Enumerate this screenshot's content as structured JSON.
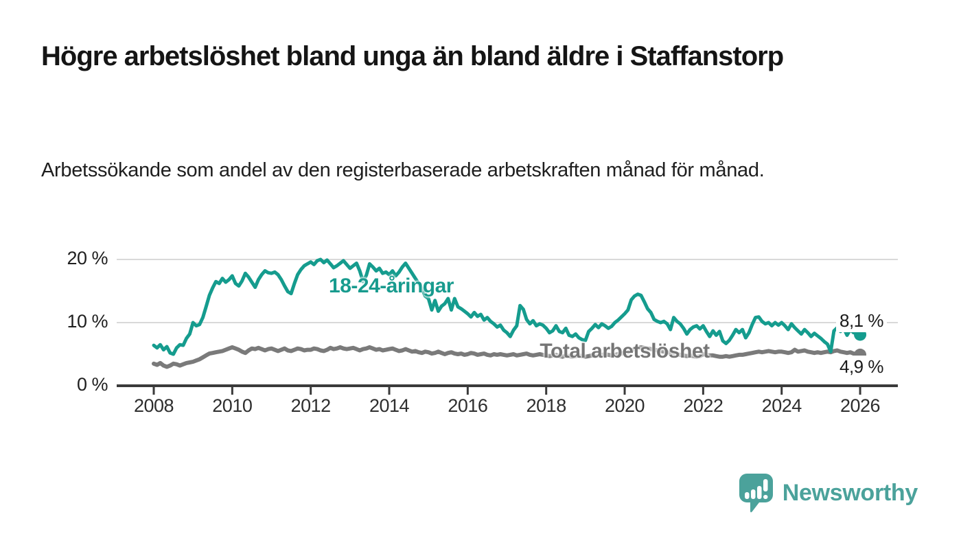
{
  "title": "Högre arbetslöshet bland unga än bland äldre i Staffanstorp",
  "subtitle": "Arbetssökande som andel av den registerbaserade arbetskraften månad för månad.",
  "branding": {
    "logo_text": "Newsworthy",
    "logo_icon": "bar-chart-speech-bubble",
    "logo_color": "#4ba29b"
  },
  "colors": {
    "youth_line": "#159c8e",
    "total_line": "#7a7a7a",
    "grid": "#d9d9d9",
    "axis": "#3a3a3a"
  },
  "chart_data": {
    "type": "line",
    "title": "Högre arbetslöshet bland unga än bland äldre i Staffanstorp",
    "xlabel": "",
    "ylabel": "",
    "x_start": "2008-01",
    "frequency": "monthly",
    "x_ticks": [
      2008,
      2010,
      2012,
      2014,
      2016,
      2018,
      2020,
      2022,
      2024,
      2026
    ],
    "y_ticks": [
      0,
      10,
      20
    ],
    "y_tick_labels": [
      "0 %",
      "10 %",
      "20 %"
    ],
    "ylim": [
      0,
      21
    ],
    "grid": "horizontal-only",
    "legend_position": "inline-labels",
    "series": [
      {
        "name": "18-24-åringar",
        "color": "#159c8e",
        "end_label": "8,1 %",
        "end_value": 8.1,
        "values": [
          6.4,
          6.0,
          6.5,
          5.7,
          6.2,
          5.2,
          5.0,
          6.0,
          6.5,
          6.4,
          7.5,
          8.2,
          10.0,
          9.5,
          9.7,
          10.8,
          12.5,
          14.3,
          15.5,
          16.5,
          16.2,
          17.0,
          16.4,
          16.8,
          17.4,
          16.2,
          15.8,
          16.6,
          17.8,
          17.2,
          16.4,
          15.6,
          16.8,
          17.6,
          18.2,
          17.9,
          17.8,
          18.0,
          17.6,
          16.8,
          15.8,
          14.9,
          14.6,
          16.2,
          17.6,
          18.4,
          19.0,
          19.3,
          19.6,
          19.2,
          19.8,
          20.0,
          19.5,
          19.9,
          19.3,
          18.7,
          19.0,
          19.4,
          19.8,
          19.2,
          18.6,
          19.0,
          19.4,
          18.2,
          16.5,
          17.5,
          19.3,
          18.8,
          18.2,
          18.6,
          17.8,
          18.0,
          17.6,
          18.2,
          17.4,
          18.0,
          18.8,
          19.4,
          18.6,
          17.8,
          17.0,
          16.2,
          15.4,
          14.2,
          13.8,
          12.0,
          13.5,
          11.8,
          12.6,
          13.0,
          13.8,
          12.0,
          13.8,
          12.5,
          12.2,
          11.8,
          11.4,
          10.9,
          11.6,
          11.0,
          11.3,
          10.4,
          10.8,
          10.2,
          9.8,
          9.3,
          9.6,
          8.8,
          8.4,
          7.8,
          8.8,
          9.5,
          12.7,
          12.1,
          10.5,
          9.8,
          10.3,
          9.5,
          9.8,
          9.6,
          9.1,
          8.4,
          8.7,
          9.5,
          8.6,
          8.4,
          9.1,
          8.0,
          7.8,
          8.2,
          7.6,
          7.3,
          7.2,
          8.6,
          9.1,
          9.7,
          9.2,
          9.8,
          9.5,
          9.1,
          9.4,
          10.0,
          10.4,
          10.9,
          11.4,
          12.0,
          13.6,
          14.2,
          14.5,
          14.3,
          13.3,
          12.2,
          11.6,
          10.5,
          10.2,
          10.0,
          10.2,
          9.8,
          8.9,
          10.8,
          10.2,
          9.8,
          9.1,
          8.2,
          8.9,
          9.3,
          9.5,
          9.0,
          9.5,
          8.6,
          7.8,
          8.7,
          8.0,
          8.6,
          7.1,
          6.7,
          7.2,
          8.0,
          8.9,
          8.4,
          8.9,
          7.6,
          8.4,
          9.7,
          10.8,
          10.9,
          10.2,
          9.8,
          10.0,
          9.5,
          10.0,
          9.6,
          10.0,
          9.5,
          8.9,
          9.8,
          9.2,
          8.7,
          8.2,
          8.9,
          8.4,
          7.8,
          8.3,
          7.9,
          7.5,
          7.0,
          6.6,
          5.4,
          8.7,
          9.2,
          8.6,
          9.1,
          8.0,
          8.9,
          8.4,
          8.3,
          8.1
        ]
      },
      {
        "name": "Total arbetslöshet",
        "color": "#7a7a7a",
        "end_label": "4,9 %",
        "end_value": 4.9,
        "values": [
          3.5,
          3.3,
          3.6,
          3.2,
          3.0,
          3.2,
          3.5,
          3.4,
          3.2,
          3.4,
          3.6,
          3.7,
          3.8,
          4.0,
          4.2,
          4.5,
          4.8,
          5.1,
          5.2,
          5.3,
          5.4,
          5.5,
          5.7,
          5.9,
          6.1,
          5.9,
          5.7,
          5.4,
          5.2,
          5.6,
          5.9,
          5.8,
          6.0,
          5.8,
          5.6,
          5.8,
          5.9,
          5.7,
          5.5,
          5.7,
          5.9,
          5.6,
          5.5,
          5.7,
          5.9,
          5.8,
          5.6,
          5.7,
          5.7,
          5.9,
          5.8,
          5.6,
          5.5,
          5.7,
          6.0,
          5.8,
          5.9,
          6.1,
          5.9,
          5.8,
          5.9,
          6.0,
          5.8,
          5.6,
          5.8,
          5.9,
          6.1,
          5.9,
          5.7,
          5.8,
          5.6,
          5.7,
          5.8,
          5.9,
          5.7,
          5.5,
          5.6,
          5.8,
          5.6,
          5.4,
          5.5,
          5.3,
          5.2,
          5.4,
          5.3,
          5.1,
          5.2,
          5.4,
          5.2,
          5.0,
          5.2,
          5.3,
          5.1,
          5.0,
          5.1,
          4.9,
          5.0,
          5.2,
          5.1,
          4.9,
          5.0,
          5.1,
          4.9,
          4.8,
          5.0,
          4.9,
          5.0,
          4.9,
          4.8,
          4.9,
          5.0,
          4.8,
          4.9,
          5.0,
          5.1,
          4.9,
          4.8,
          4.9,
          5.0,
          4.9,
          4.8,
          4.7,
          4.8,
          4.9,
          4.7,
          4.6,
          4.8,
          4.7,
          4.6,
          4.7,
          4.8,
          4.7,
          4.6,
          4.7,
          4.8,
          4.7,
          4.8,
          4.9,
          5.0,
          4.9,
          4.8,
          4.9,
          5.0,
          5.1,
          5.2,
          5.3,
          5.6,
          5.8,
          6.0,
          6.1,
          6.0,
          5.9,
          5.8,
          5.7,
          5.6,
          5.5,
          5.4,
          5.3,
          5.2,
          5.1,
          5.0,
          4.9,
          4.8,
          4.7,
          4.8,
          4.7,
          4.6,
          4.7,
          5.0,
          4.9,
          4.8,
          4.8,
          4.7,
          4.6,
          4.6,
          4.7,
          4.6,
          4.7,
          4.8,
          4.9,
          4.9,
          5.0,
          5.1,
          5.2,
          5.3,
          5.4,
          5.3,
          5.4,
          5.5,
          5.4,
          5.3,
          5.4,
          5.4,
          5.3,
          5.2,
          5.3,
          5.7,
          5.4,
          5.5,
          5.6,
          5.4,
          5.3,
          5.2,
          5.3,
          5.2,
          5.3,
          5.4,
          5.3,
          5.5,
          5.6,
          5.4,
          5.3,
          5.2,
          5.3,
          5.1,
          5.0,
          4.9
        ]
      }
    ]
  }
}
